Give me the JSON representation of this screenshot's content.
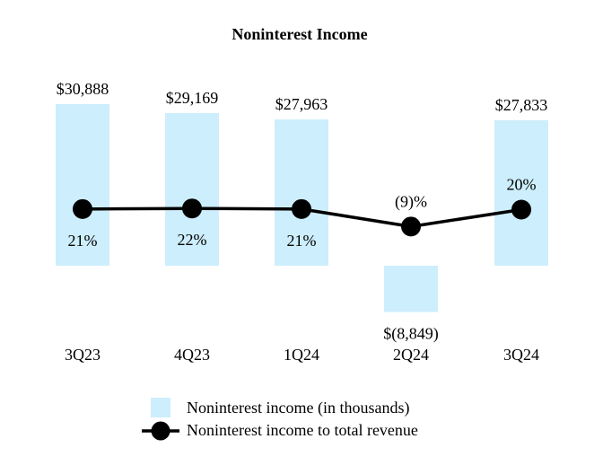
{
  "chart_data": {
    "type": "bar",
    "title": "Noninterest Income",
    "categories": [
      "3Q23",
      "4Q23",
      "1Q24",
      "2Q24",
      "3Q24"
    ],
    "series": [
      {
        "name": "Noninterest income (in thousands)",
        "kind": "bar",
        "values": [
          30888,
          29169,
          27963,
          -8849,
          27833
        ],
        "labels": [
          "$30,888",
          "$29,169",
          "$27,963",
          "$(8,849)",
          "$27,833"
        ]
      },
      {
        "name": "Noninterest income to total revenue",
        "kind": "line",
        "values": [
          21,
          22,
          21,
          -9,
          20
        ],
        "labels": [
          "21%",
          "22%",
          "21%",
          "(9)%",
          "20%"
        ]
      }
    ],
    "bar_range": [
      -8849,
      30888
    ],
    "line_range": [
      -9,
      22
    ],
    "legend_position": "bottom-center",
    "grid": false
  },
  "colors": {
    "bar": "#cdeefc",
    "line": "#000000",
    "text": "#000000"
  }
}
